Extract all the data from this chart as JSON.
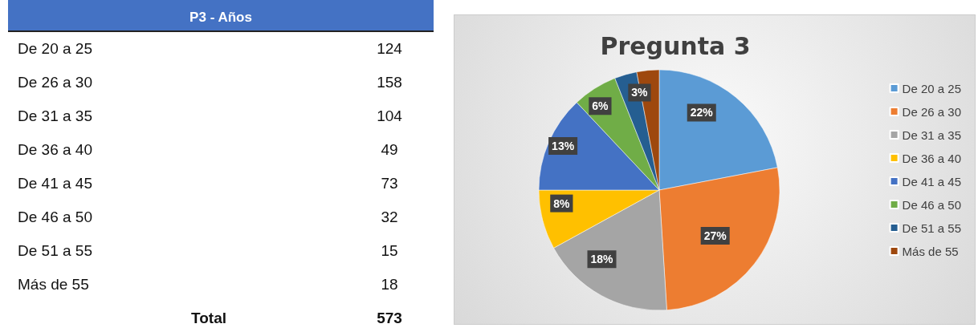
{
  "chart_data": [
    {
      "type": "other",
      "title": "P3 - Años",
      "categories": [
        "De 20 a 25",
        "De 26 a 30",
        "De 31 a 35",
        "De 36 a 40",
        "De 41 a 45",
        "De 46 a 50",
        "De 51 a 55",
        "Más de 55"
      ],
      "values": [
        124,
        158,
        104,
        49,
        73,
        32,
        15,
        18
      ],
      "data_labels": true,
      "annotations": [
        "Total",
        "573"
      ]
    },
    {
      "type": "pie",
      "title": "Pregunta 3",
      "categories": [
        "De 20 a 25",
        "De 26 a 30",
        "De 31 a 35",
        "De 36 a 40",
        "De 41 a 45",
        "De 46 a 50",
        "De 51 a 55",
        "Más de 55"
      ],
      "values": [
        22,
        27,
        18,
        8,
        13,
        6,
        3,
        3
      ],
      "colors": [
        "#5b9bd5",
        "#ed7d31",
        "#a5a5a5",
        "#ffc000",
        "#4472c4",
        "#70ad47",
        "#255e91",
        "#9e480e"
      ],
      "value_labels": [
        "22%",
        "27%",
        "18%",
        "8%",
        "13%",
        "6%",
        null,
        "3%"
      ],
      "legend": "right"
    }
  ]
}
